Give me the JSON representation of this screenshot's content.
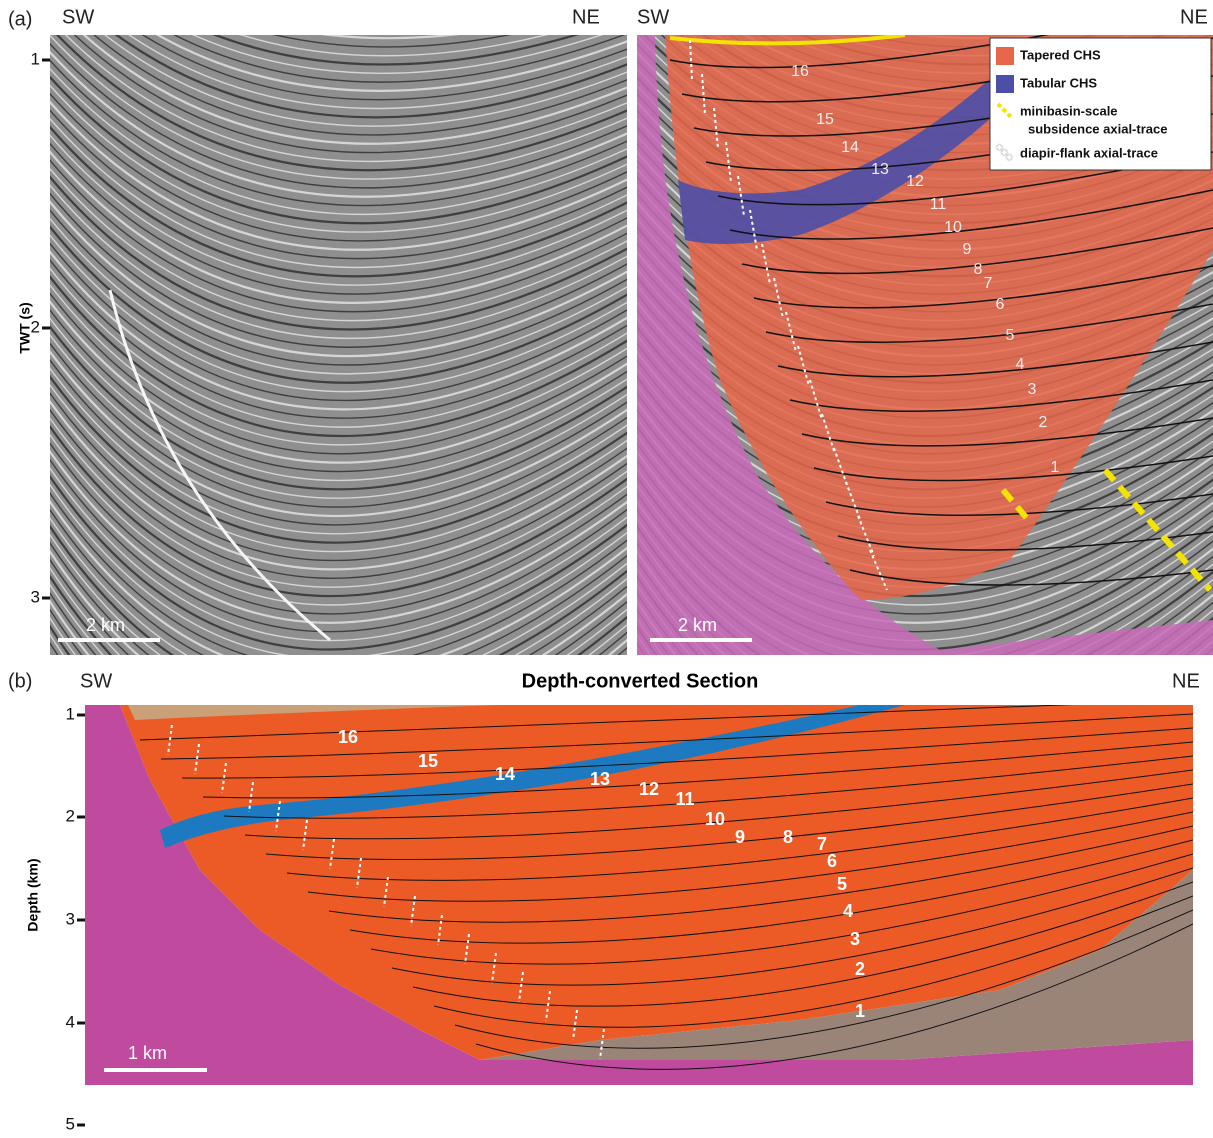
{
  "panel_a": {
    "label": "(a)",
    "left": {
      "sw": "SW",
      "ne": "NE",
      "scale_bar": "2 km"
    },
    "right": {
      "sw": "SW",
      "ne": "NE",
      "scale_bar": "2 km",
      "units": [
        "16",
        "15",
        "14",
        "13",
        "12",
        "11",
        "10",
        "9",
        "8",
        "7",
        "6",
        "5",
        "4",
        "3",
        "2",
        "1"
      ]
    },
    "y_axis": {
      "title": "TWT (s)",
      "ticks": [
        "1",
        "2",
        "3"
      ]
    },
    "legend": [
      {
        "label": "Tapered CHS",
        "color": "#e8664a"
      },
      {
        "label": "Tabular CHS",
        "color": "#4b4fa8"
      },
      {
        "label": [
          "minibasin-scale",
          "subsidence axial-trace"
        ],
        "color": "#f2e400"
      },
      {
        "label": "diapir-flank axial-trace",
        "color": "#ffffff"
      }
    ]
  },
  "panel_b": {
    "label": "(b)",
    "title": "Depth-converted Section",
    "sw": "SW",
    "ne": "NE",
    "scale_bar": "1 km",
    "y_axis": {
      "title": "Depth (km)",
      "ticks": [
        "1",
        "2",
        "3",
        "4",
        "5"
      ]
    },
    "units": [
      "16",
      "15",
      "14",
      "13",
      "12",
      "11",
      "10",
      "9",
      "8",
      "7",
      "6",
      "5",
      "4",
      "3",
      "2",
      "1"
    ]
  }
}
